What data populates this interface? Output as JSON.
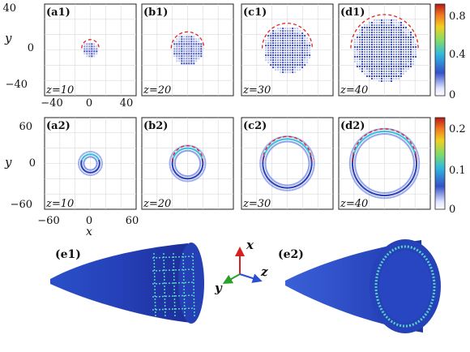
{
  "figure": {
    "panels_row1": [
      {
        "label": "(a1)",
        "z_label": "z=10",
        "radius_units": 9
      },
      {
        "label": "(b1)",
        "z_label": "z=20",
        "radius_units": 17
      },
      {
        "label": "(c1)",
        "z_label": "z=30",
        "radius_units": 26
      },
      {
        "label": "(d1)",
        "z_label": "z=40",
        "radius_units": 35
      }
    ],
    "panels_row2": [
      {
        "label": "(a2)",
        "z_label": "z=10",
        "ring_radius": 12,
        "ring_width": 10
      },
      {
        "label": "(b2)",
        "z_label": "z=20",
        "ring_radius": 20,
        "ring_width": 10
      },
      {
        "label": "(c2)",
        "z_label": "z=30",
        "ring_radius": 32,
        "ring_width": 10
      },
      {
        "label": "(d2)",
        "z_label": "z=40",
        "ring_radius": 42,
        "ring_width": 10
      }
    ],
    "row1_axis": {
      "y_label": "y",
      "x_ticks": [
        "−40",
        "0",
        "40"
      ],
      "y_ticks": [
        "40",
        "0",
        "−40"
      ],
      "range": [
        -50,
        50
      ]
    },
    "row2_axis": {
      "y_label": "y",
      "x_label": "x",
      "x_ticks": [
        "−60",
        "0",
        "60"
      ],
      "y_ticks": [
        "60",
        "0",
        "−60"
      ],
      "range": [
        -60,
        60
      ]
    },
    "colorbar1_ticks": [
      "0.8",
      "0.4",
      "0"
    ],
    "colorbar2_ticks": [
      "0.2",
      "0.1",
      "0"
    ],
    "bottom": {
      "e1_label": "(e1)",
      "e2_label": "(e2)",
      "axis_x": "x",
      "axis_y": "y",
      "axis_z": "z",
      "axis_colors": {
        "x": "#d42020",
        "y": "#2aa02a",
        "z": "#2a4fd0"
      }
    },
    "colors": {
      "dot_blue": "#2c3fb8",
      "dot_light": "#6f86e0",
      "highlight": "#36c0e0",
      "dashed": "#e02020",
      "cone_dark": "#1b2a8a",
      "cone_mid": "#3550c8"
    }
  }
}
